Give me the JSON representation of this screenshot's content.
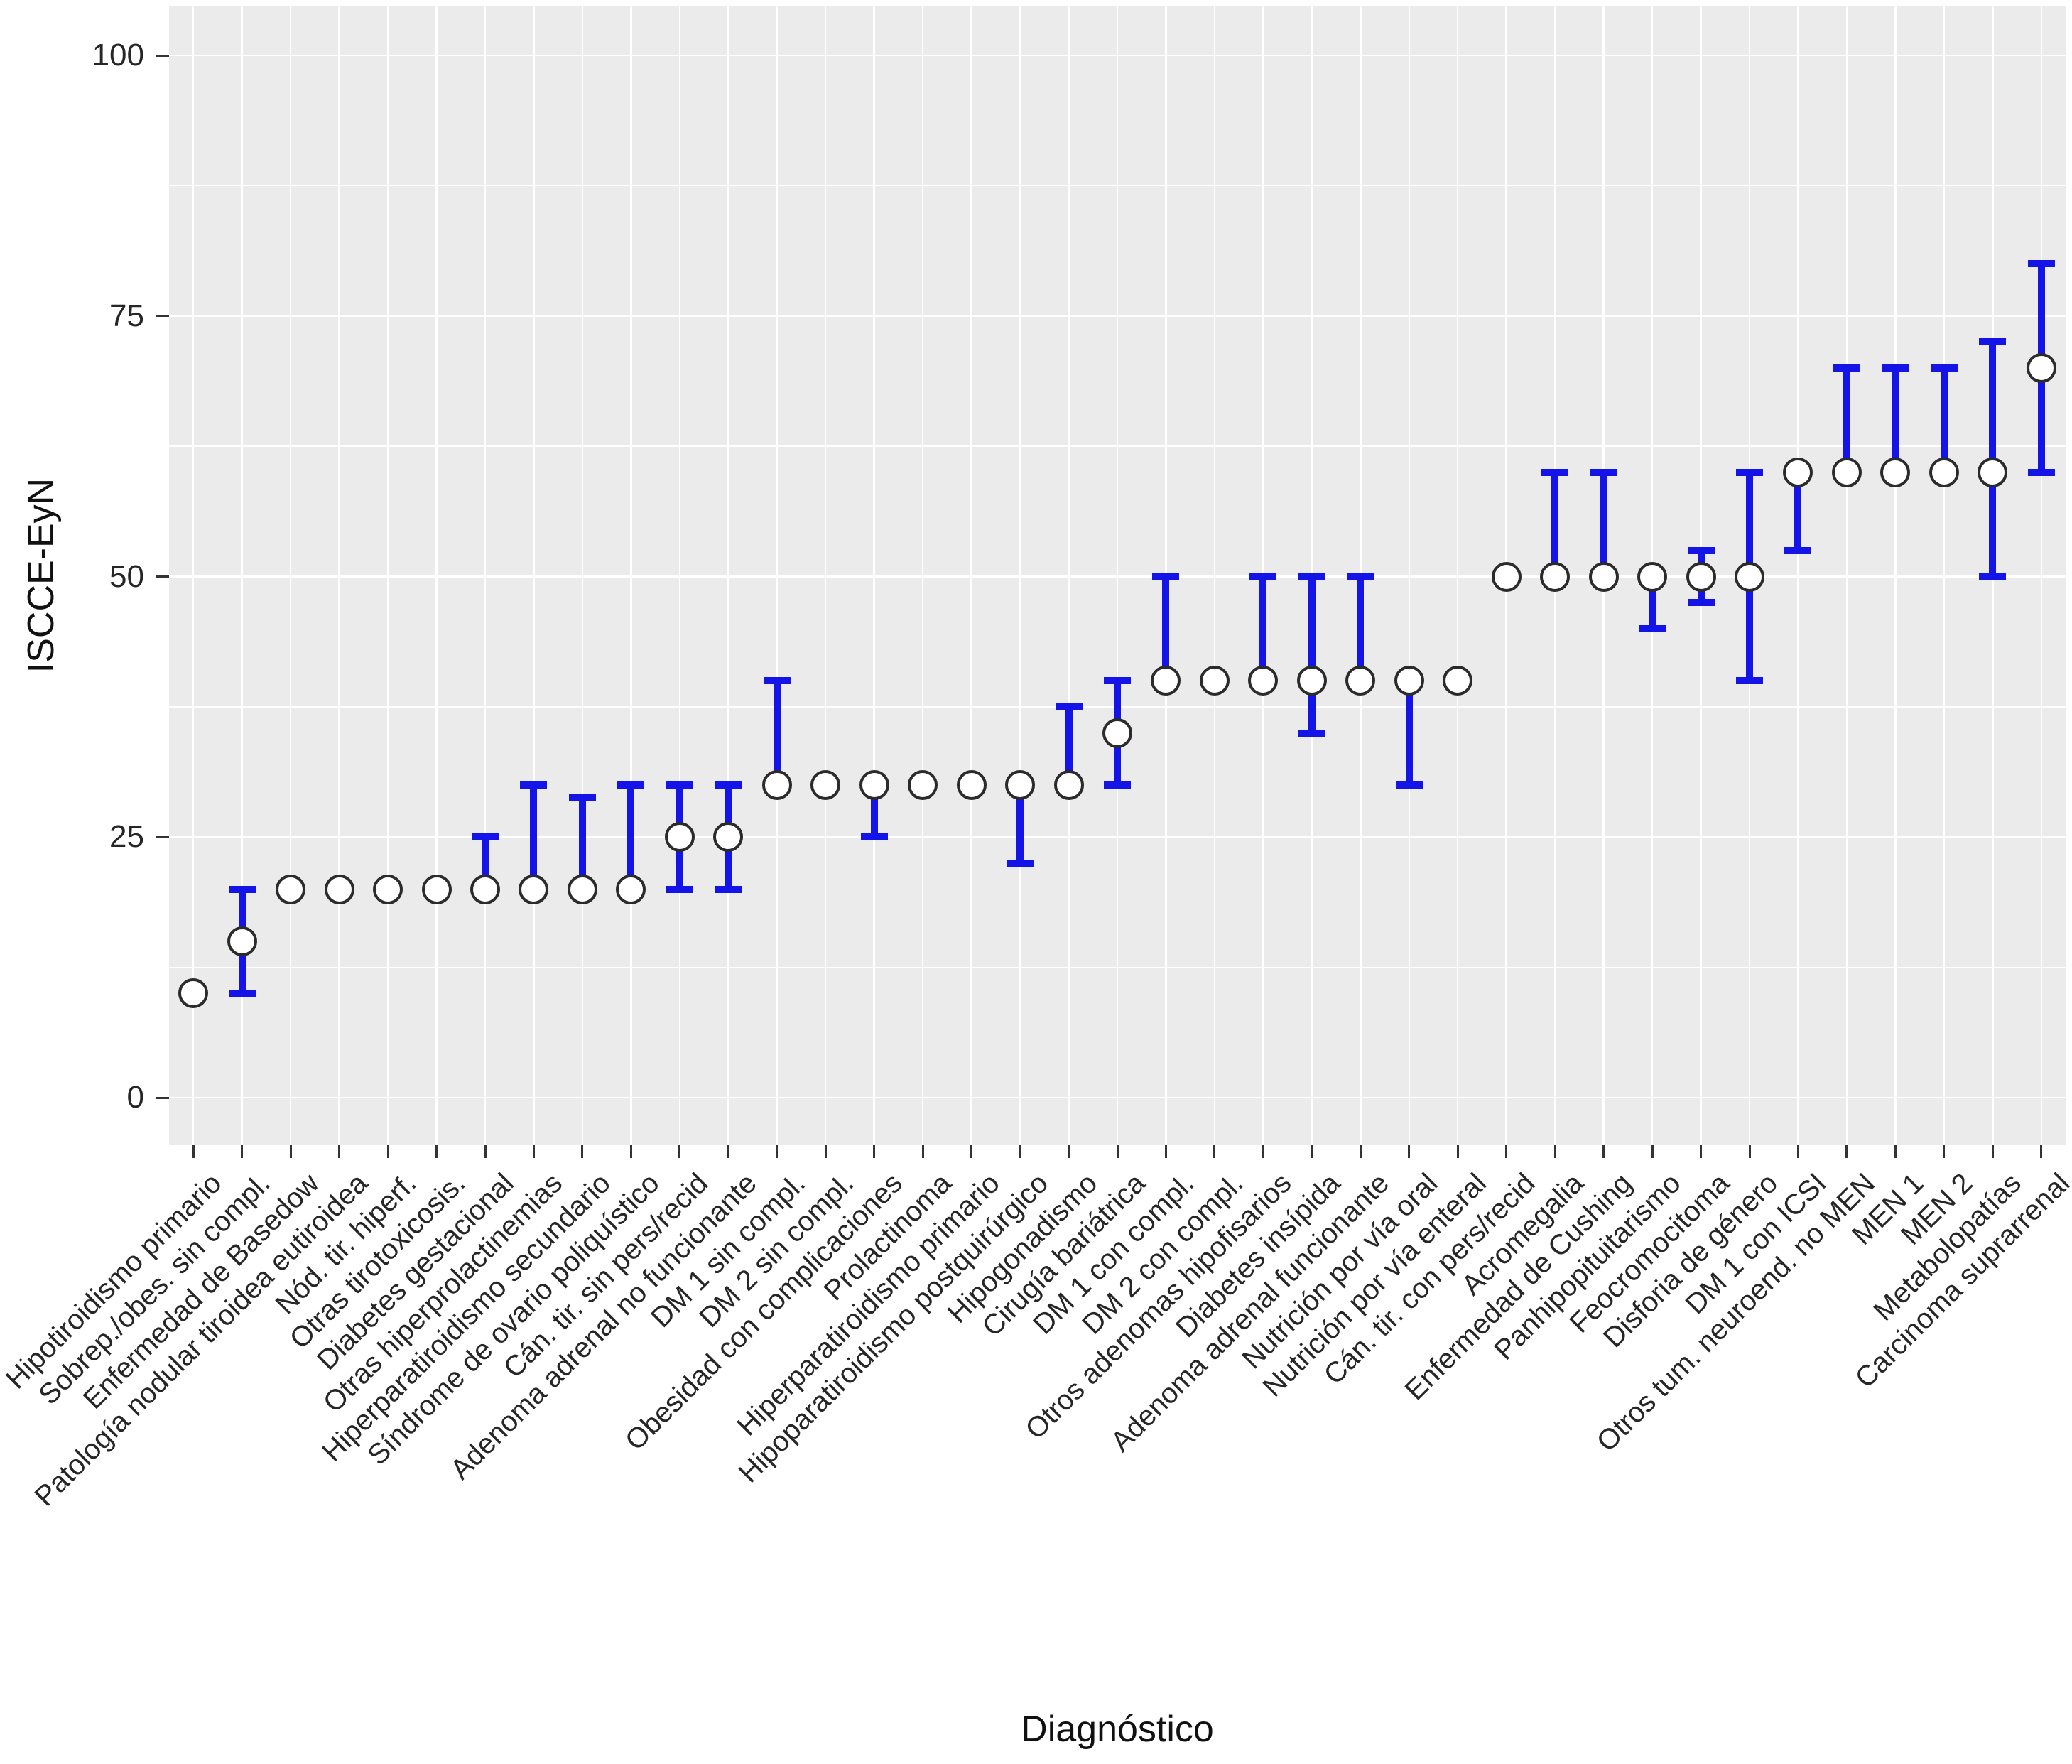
{
  "figure": {
    "y_axis_title": "ISCCE-EyN",
    "x_axis_title": "Diagnóstico"
  },
  "colors": {
    "panel_background": "#EBEBEB",
    "gridline": "#FFFFFF",
    "errorbar_blue": "#1414E8",
    "marker_fill": "#FFFFFF",
    "marker_stroke": "#2B2B2B",
    "axis_text": "#262626",
    "tick_mark": "#333333"
  },
  "chart_data": {
    "type": "scatter",
    "subtype": "pointrange (white open circles with vertical blue range bars)",
    "title": "",
    "xlabel": "Diagnóstico",
    "ylabel": "ISCCE-EyN",
    "ylim": [
      0,
      100
    ],
    "y_ticks": [
      0,
      25,
      50,
      75,
      100
    ],
    "y_minor_gridlines": [
      12.5,
      37.5,
      62.5,
      87.5
    ],
    "grid": "white major and minor horizontal gridlines plus vertical gridline per category on gray panel",
    "legend_position": "none",
    "x_tick_angle": 45,
    "points": [
      {
        "label": "Hipotiroidismo primario",
        "value": 10,
        "low": null,
        "high": null
      },
      {
        "label": "Sobrep./obes. sin compl.",
        "value": 15,
        "low": 10,
        "high": 20
      },
      {
        "label": "Enfermedad de Basedow",
        "value": 20,
        "low": null,
        "high": null
      },
      {
        "label": "Patología nodular tiroidea eutiroidea",
        "value": 20,
        "low": null,
        "high": null
      },
      {
        "label": "Nód. tir. hiperf.",
        "value": 20,
        "low": null,
        "high": null
      },
      {
        "label": "Otras tirotoxicosis.",
        "value": 20,
        "low": null,
        "high": null
      },
      {
        "label": "Diabetes gestacional",
        "value": 20,
        "low": 20,
        "high": 25
      },
      {
        "label": "Otras hiperprolactinemias",
        "value": 20,
        "low": 20,
        "high": 30
      },
      {
        "label": "Hiperparatiroidismo secundario",
        "value": 20,
        "low": 20,
        "high": 28.75
      },
      {
        "label": "Síndrome de ovario poliquístico",
        "value": 20,
        "low": 20,
        "high": 30
      },
      {
        "label": "Cán. tir. sin pers/recid",
        "value": 25,
        "low": 20,
        "high": 30
      },
      {
        "label": "Adenoma adrenal no funcionante",
        "value": 25,
        "low": 20,
        "high": 30
      },
      {
        "label": "DM 1 sin compl.",
        "value": 30,
        "low": 30,
        "high": 40
      },
      {
        "label": "DM 2 sin compl.",
        "value": 30,
        "low": null,
        "high": null
      },
      {
        "label": "Obesidad con complicaciones",
        "value": 30,
        "low": 25,
        "high": 30
      },
      {
        "label": "Prolactinoma",
        "value": 30,
        "low": null,
        "high": null
      },
      {
        "label": "Hiperparatiroidismo primario",
        "value": 30,
        "low": null,
        "high": null
      },
      {
        "label": "Hipoparatiroidismo postquirúrgico",
        "value": 30,
        "low": 22.5,
        "high": 30
      },
      {
        "label": "Hipogonadismo",
        "value": 30,
        "low": 30,
        "high": 37.5
      },
      {
        "label": "Cirugía bariátrica",
        "value": 35,
        "low": 30,
        "high": 40
      },
      {
        "label": "DM 1 con compl.",
        "value": 40,
        "low": 40,
        "high": 50
      },
      {
        "label": "DM 2 con compl.",
        "value": 40,
        "low": null,
        "high": null
      },
      {
        "label": "Otros adenomas hipofisarios",
        "value": 40,
        "low": 40,
        "high": 50
      },
      {
        "label": "Diabetes insípida",
        "value": 40,
        "low": 35,
        "high": 50
      },
      {
        "label": "Adenoma adrenal funcionante",
        "value": 40,
        "low": 40,
        "high": 50
      },
      {
        "label": "Nutrición por vía oral",
        "value": 40,
        "low": 30,
        "high": 40
      },
      {
        "label": "Nutrición por vía enteral",
        "value": 40,
        "low": null,
        "high": null
      },
      {
        "label": "Cán. tir. con pers/recid",
        "value": 50,
        "low": null,
        "high": null
      },
      {
        "label": "Acromegalia",
        "value": 50,
        "low": 50,
        "high": 60
      },
      {
        "label": "Enfermedad de Cushing",
        "value": 50,
        "low": 50,
        "high": 60
      },
      {
        "label": "Panhipopituitarismo",
        "value": 50,
        "low": 45,
        "high": 50
      },
      {
        "label": "Feocromocitoma",
        "value": 50,
        "low": 47.5,
        "high": 52.5
      },
      {
        "label": "Disforia de género",
        "value": 50,
        "low": 40,
        "high": 60
      },
      {
        "label": "DM 1 con ICSI",
        "value": 60,
        "low": 52.5,
        "high": 60
      },
      {
        "label": "Otros tum. neuroend. no MEN",
        "value": 60,
        "low": 60,
        "high": 70
      },
      {
        "label": "MEN 1",
        "value": 60,
        "low": 60,
        "high": 70
      },
      {
        "label": "MEN 2",
        "value": 60,
        "low": 60,
        "high": 70
      },
      {
        "label": "Metabolopatías",
        "value": 60,
        "low": 50,
        "high": 72.5
      },
      {
        "label": "Carcinoma suprarrenal",
        "value": 70,
        "low": 60,
        "high": 80
      }
    ]
  }
}
